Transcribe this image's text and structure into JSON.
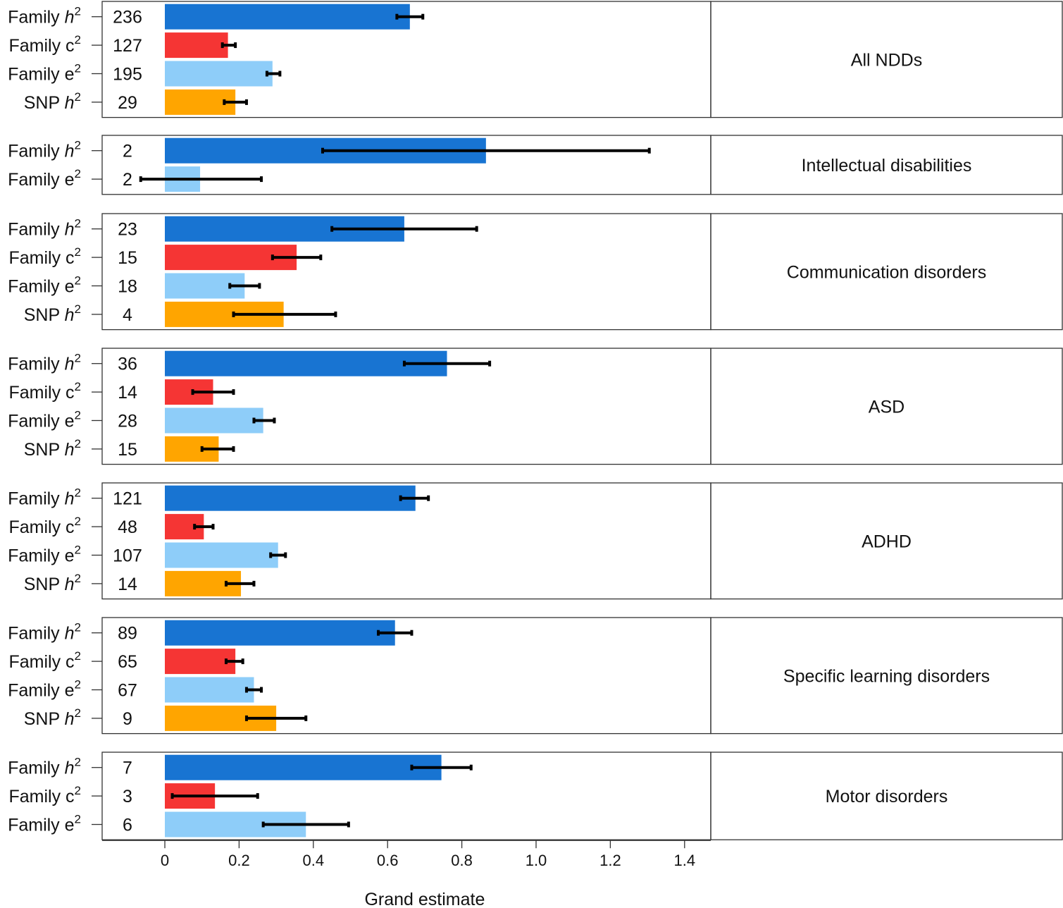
{
  "chart_data": {
    "type": "bar",
    "orientation": "horizontal",
    "xlabel": "Grand estimate",
    "xlim": [
      -0.17,
      1.47
    ],
    "xticks": [
      0,
      0.2,
      0.4,
      0.6,
      0.8,
      1.0,
      1.2,
      1.4
    ],
    "xtick_labels": [
      "0",
      "0.2",
      "0.4",
      "0.6",
      "0.8",
      "1.0",
      "1.2",
      "1.4"
    ],
    "colors": {
      "family_h2": "#1874d2",
      "family_c2": "#f53534",
      "family_e2": "#8ecdf9",
      "snp_h2": "#ffa500"
    },
    "panels": [
      {
        "title": "All NDDs",
        "rows": [
          {
            "label_main": "Family ",
            "label_var": "h",
            "label_italic": true,
            "key": "family_h2",
            "n": "236",
            "estimate": 0.66,
            "ci_low": 0.625,
            "ci_high": 0.695
          },
          {
            "label_main": "Family ",
            "label_var": "c",
            "label_italic": false,
            "key": "family_c2",
            "n": "127",
            "estimate": 0.17,
            "ci_low": 0.155,
            "ci_high": 0.19
          },
          {
            "label_main": "Family ",
            "label_var": "e",
            "label_italic": false,
            "key": "family_e2",
            "n": "195",
            "estimate": 0.29,
            "ci_low": 0.275,
            "ci_high": 0.31
          },
          {
            "label_main": "SNP ",
            "label_var": "h",
            "label_italic": true,
            "key": "snp_h2",
            "n": "29",
            "estimate": 0.19,
            "ci_low": 0.16,
            "ci_high": 0.22
          }
        ]
      },
      {
        "title": "Intellectual disabilities",
        "rows": [
          {
            "label_main": "Family ",
            "label_var": "h",
            "label_italic": true,
            "key": "family_h2",
            "n": "2",
            "estimate": 0.865,
            "ci_low": 0.425,
            "ci_high": 1.305
          },
          {
            "label_main": "Family ",
            "label_var": "e",
            "label_italic": false,
            "key": "family_e2",
            "n": "2",
            "estimate": 0.095,
            "ci_low": -0.065,
            "ci_high": 0.26
          }
        ]
      },
      {
        "title": "Communication disorders",
        "rows": [
          {
            "label_main": "Family ",
            "label_var": "h",
            "label_italic": true,
            "key": "family_h2",
            "n": "23",
            "estimate": 0.645,
            "ci_low": 0.45,
            "ci_high": 0.84
          },
          {
            "label_main": "Family ",
            "label_var": "c",
            "label_italic": false,
            "key": "family_c2",
            "n": "15",
            "estimate": 0.355,
            "ci_low": 0.29,
            "ci_high": 0.42
          },
          {
            "label_main": "Family ",
            "label_var": "e",
            "label_italic": false,
            "key": "family_e2",
            "n": "18",
            "estimate": 0.215,
            "ci_low": 0.175,
            "ci_high": 0.255
          },
          {
            "label_main": "SNP ",
            "label_var": "h",
            "label_italic": true,
            "key": "snp_h2",
            "n": "4",
            "estimate": 0.32,
            "ci_low": 0.185,
            "ci_high": 0.46
          }
        ]
      },
      {
        "title": "ASD",
        "rows": [
          {
            "label_main": "Family ",
            "label_var": "h",
            "label_italic": true,
            "key": "family_h2",
            "n": "36",
            "estimate": 0.76,
            "ci_low": 0.645,
            "ci_high": 0.875
          },
          {
            "label_main": "Family ",
            "label_var": "c",
            "label_italic": false,
            "key": "family_c2",
            "n": "14",
            "estimate": 0.13,
            "ci_low": 0.075,
            "ci_high": 0.185
          },
          {
            "label_main": "Family ",
            "label_var": "e",
            "label_italic": false,
            "key": "family_e2",
            "n": "28",
            "estimate": 0.265,
            "ci_low": 0.24,
            "ci_high": 0.295
          },
          {
            "label_main": "SNP ",
            "label_var": "h",
            "label_italic": true,
            "key": "snp_h2",
            "n": "15",
            "estimate": 0.145,
            "ci_low": 0.1,
            "ci_high": 0.185
          }
        ]
      },
      {
        "title": "ADHD",
        "rows": [
          {
            "label_main": "Family ",
            "label_var": "h",
            "label_italic": true,
            "key": "family_h2",
            "n": "121",
            "estimate": 0.675,
            "ci_low": 0.635,
            "ci_high": 0.71
          },
          {
            "label_main": "Family ",
            "label_var": "c",
            "label_italic": false,
            "key": "family_c2",
            "n": "48",
            "estimate": 0.105,
            "ci_low": 0.08,
            "ci_high": 0.13
          },
          {
            "label_main": "Family ",
            "label_var": "e",
            "label_italic": false,
            "key": "family_e2",
            "n": "107",
            "estimate": 0.305,
            "ci_low": 0.285,
            "ci_high": 0.325
          },
          {
            "label_main": "SNP ",
            "label_var": "h",
            "label_italic": true,
            "key": "snp_h2",
            "n": "14",
            "estimate": 0.205,
            "ci_low": 0.165,
            "ci_high": 0.24
          }
        ]
      },
      {
        "title": "Specific learning disorders",
        "rows": [
          {
            "label_main": "Family ",
            "label_var": "h",
            "label_italic": true,
            "key": "family_h2",
            "n": "89",
            "estimate": 0.62,
            "ci_low": 0.575,
            "ci_high": 0.665
          },
          {
            "label_main": "Family ",
            "label_var": "c",
            "label_italic": false,
            "key": "family_c2",
            "n": "65",
            "estimate": 0.19,
            "ci_low": 0.165,
            "ci_high": 0.21
          },
          {
            "label_main": "Family ",
            "label_var": "e",
            "label_italic": false,
            "key": "family_e2",
            "n": "67",
            "estimate": 0.24,
            "ci_low": 0.22,
            "ci_high": 0.26
          },
          {
            "label_main": "SNP ",
            "label_var": "h",
            "label_italic": true,
            "key": "snp_h2",
            "n": "9",
            "estimate": 0.3,
            "ci_low": 0.22,
            "ci_high": 0.38
          }
        ]
      },
      {
        "title": "Motor disorders",
        "rows": [
          {
            "label_main": "Family ",
            "label_var": "h",
            "label_italic": true,
            "key": "family_h2",
            "n": "7",
            "estimate": 0.745,
            "ci_low": 0.665,
            "ci_high": 0.825
          },
          {
            "label_main": "Family ",
            "label_var": "c",
            "label_italic": false,
            "key": "family_c2",
            "n": "3",
            "estimate": 0.135,
            "ci_low": 0.02,
            "ci_high": 0.25
          },
          {
            "label_main": "Family ",
            "label_var": "e",
            "label_italic": false,
            "key": "family_e2",
            "n": "6",
            "estimate": 0.38,
            "ci_low": 0.265,
            "ci_high": 0.495
          }
        ]
      }
    ]
  }
}
